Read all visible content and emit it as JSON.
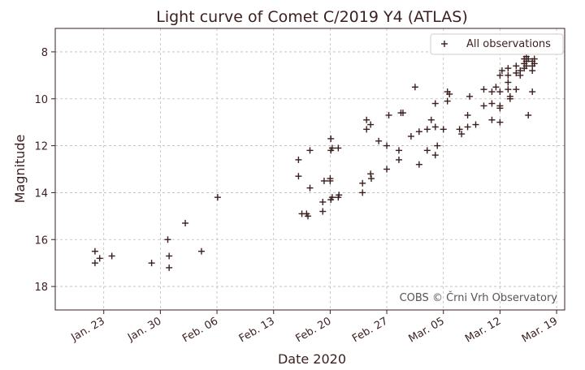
{
  "chart_data": {
    "type": "scatter",
    "title": "Light curve of Comet C/2019 Y4 (ATLAS)",
    "xlabel": "Date 2020",
    "ylabel": "Magnitude",
    "y_inverted": true,
    "xlim": [
      "2020-01-17",
      "2020-03-20"
    ],
    "ylim": [
      19.0,
      7.0
    ],
    "grid": true,
    "legend_position": "top-right",
    "marker": "+",
    "colors": {
      "marker": "#3b1f1f",
      "text": "#3b1f1f",
      "axis": "#3b1f1f",
      "grid": "#bbbbbb"
    },
    "x_ticks": [
      {
        "date": "2020-01-23",
        "label": "Jan. 23"
      },
      {
        "date": "2020-01-30",
        "label": "Jan. 30"
      },
      {
        "date": "2020-02-06",
        "label": "Feb. 06"
      },
      {
        "date": "2020-02-13",
        "label": "Feb. 13"
      },
      {
        "date": "2020-02-20",
        "label": "Feb. 20"
      },
      {
        "date": "2020-02-27",
        "label": "Feb. 27"
      },
      {
        "date": "2020-03-05",
        "label": "Mar. 05"
      },
      {
        "date": "2020-03-12",
        "label": "Mar. 12"
      },
      {
        "date": "2020-03-19",
        "label": "Mar. 19"
      }
    ],
    "y_ticks": [
      8,
      10,
      12,
      14,
      16,
      18
    ],
    "annotation": "COBS © Črni Vrh Observatory",
    "series": [
      {
        "name": "All observations",
        "points": [
          [
            "2020-01-21T22:00",
            16.5
          ],
          [
            "2020-01-21T22:00",
            17.0
          ],
          [
            "2020-01-22T12:00",
            16.8
          ],
          [
            "2020-01-24T00:00",
            16.7
          ],
          [
            "2020-01-28T22:00",
            17.0
          ],
          [
            "2020-01-30T22:00",
            16.0
          ],
          [
            "2020-01-31T02:00",
            16.7
          ],
          [
            "2020-01-31T02:00",
            17.2
          ],
          [
            "2020-02-02T02:00",
            15.3
          ],
          [
            "2020-02-04T02:00",
            16.5
          ],
          [
            "2020-02-06T02:00",
            14.2
          ],
          [
            "2020-02-16T02:00",
            12.6
          ],
          [
            "2020-02-16T02:00",
            13.3
          ],
          [
            "2020-02-16T12:00",
            14.9
          ],
          [
            "2020-02-17T02:00",
            14.9
          ],
          [
            "2020-02-17T06:00",
            15.0
          ],
          [
            "2020-02-17T12:00",
            12.2
          ],
          [
            "2020-02-17T12:00",
            13.8
          ],
          [
            "2020-02-19T02:00",
            14.8
          ],
          [
            "2020-02-19T02:00",
            14.4
          ],
          [
            "2020-02-19T06:00",
            13.5
          ],
          [
            "2020-02-20T00:00",
            13.4
          ],
          [
            "2020-02-20T00:00",
            13.5
          ],
          [
            "2020-02-20T02:00",
            11.7
          ],
          [
            "2020-02-20T02:00",
            12.2
          ],
          [
            "2020-02-20T02:00",
            14.3
          ],
          [
            "2020-02-20T06:00",
            12.1
          ],
          [
            "2020-02-20T06:00",
            14.2
          ],
          [
            "2020-02-21T00:00",
            12.1
          ],
          [
            "2020-02-21T00:00",
            14.2
          ],
          [
            "2020-02-21T02:00",
            14.1
          ],
          [
            "2020-02-24T00:00",
            13.6
          ],
          [
            "2020-02-24T00:00",
            14.0
          ],
          [
            "2020-02-24T12:00",
            11.3
          ],
          [
            "2020-02-24T12:00",
            10.9
          ],
          [
            "2020-02-25T00:00",
            11.1
          ],
          [
            "2020-02-25T00:00",
            13.2
          ],
          [
            "2020-02-25T02:00",
            13.4
          ],
          [
            "2020-02-26T00:00",
            11.8
          ],
          [
            "2020-02-27T00:00",
            13.0
          ],
          [
            "2020-02-27T00:00",
            12.0
          ],
          [
            "2020-02-27T06:00",
            10.7
          ],
          [
            "2020-02-28T12:00",
            12.2
          ],
          [
            "2020-02-28T12:00",
            12.6
          ],
          [
            "2020-02-28T18:00",
            10.6
          ],
          [
            "2020-02-29T00:00",
            10.6
          ],
          [
            "2020-03-01T00:00",
            11.6
          ],
          [
            "2020-03-01T12:00",
            9.5
          ],
          [
            "2020-03-02T00:00",
            11.4
          ],
          [
            "2020-03-02T00:00",
            12.8
          ],
          [
            "2020-03-03T00:00",
            11.3
          ],
          [
            "2020-03-03T00:00",
            12.2
          ],
          [
            "2020-03-03T12:00",
            10.9
          ],
          [
            "2020-03-04T00:00",
            11.2
          ],
          [
            "2020-03-04T00:00",
            10.2
          ],
          [
            "2020-03-04T00:00",
            12.4
          ],
          [
            "2020-03-04T06:00",
            12.0
          ],
          [
            "2020-03-05T00:00",
            11.3
          ],
          [
            "2020-03-05T12:00",
            10.1
          ],
          [
            "2020-03-05T12:00",
            9.7
          ],
          [
            "2020-03-05T18:00",
            9.8
          ],
          [
            "2020-03-07T00:00",
            11.3
          ],
          [
            "2020-03-07T06:00",
            11.5
          ],
          [
            "2020-03-08T00:00",
            10.7
          ],
          [
            "2020-03-08T00:00",
            11.2
          ],
          [
            "2020-03-08T06:00",
            9.9
          ],
          [
            "2020-03-09T00:00",
            11.1
          ],
          [
            "2020-03-10T00:00",
            10.3
          ],
          [
            "2020-03-10T00:00",
            9.6
          ],
          [
            "2020-03-11T00:00",
            10.9
          ],
          [
            "2020-03-11T00:00",
            10.2
          ],
          [
            "2020-03-11T00:00",
            9.7
          ],
          [
            "2020-03-11T12:00",
            9.5
          ],
          [
            "2020-03-12T00:00",
            11.0
          ],
          [
            "2020-03-12T00:00",
            10.4
          ],
          [
            "2020-03-12T00:00",
            10.3
          ],
          [
            "2020-03-12T00:00",
            9.7
          ],
          [
            "2020-03-12T00:00",
            9.0
          ],
          [
            "2020-03-12T06:00",
            8.8
          ],
          [
            "2020-03-13T00:00",
            9.6
          ],
          [
            "2020-03-13T00:00",
            9.3
          ],
          [
            "2020-03-13T00:00",
            9.0
          ],
          [
            "2020-03-13T00:00",
            8.7
          ],
          [
            "2020-03-13T06:00",
            9.9
          ],
          [
            "2020-03-13T06:00",
            10.0
          ],
          [
            "2020-03-14T00:00",
            8.6
          ],
          [
            "2020-03-14T00:00",
            8.9
          ],
          [
            "2020-03-14T00:00",
            9.6
          ],
          [
            "2020-03-14T12:00",
            8.8
          ],
          [
            "2020-03-14T12:00",
            9.0
          ],
          [
            "2020-03-15T00:00",
            8.3
          ],
          [
            "2020-03-15T00:00",
            8.5
          ],
          [
            "2020-03-15T00:00",
            8.7
          ],
          [
            "2020-03-15T06:00",
            8.2
          ],
          [
            "2020-03-15T06:00",
            8.4
          ],
          [
            "2020-03-15T06:00",
            8.6
          ],
          [
            "2020-03-15T12:00",
            8.3
          ],
          [
            "2020-03-15T12:00",
            10.7
          ],
          [
            "2020-03-16T00:00",
            8.4
          ],
          [
            "2020-03-16T00:00",
            8.6
          ],
          [
            "2020-03-16T00:00",
            8.8
          ],
          [
            "2020-03-16T00:00",
            9.7
          ],
          [
            "2020-03-16T06:00",
            8.3
          ],
          [
            "2020-03-16T06:00",
            8.5
          ]
        ]
      }
    ]
  }
}
